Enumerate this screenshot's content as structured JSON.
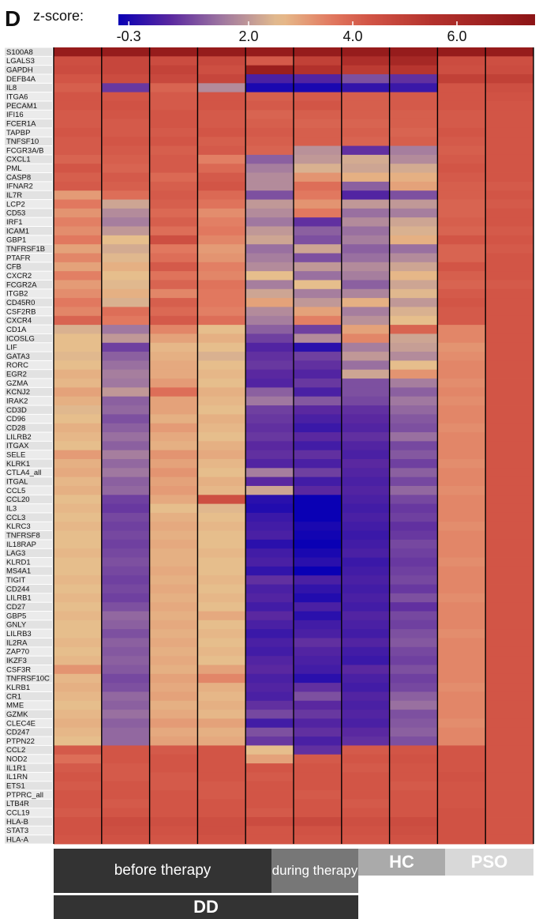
{
  "panel_label": "D",
  "colorbar": {
    "title": "z-score:",
    "tick_labels": [
      "-0.3",
      "2.0",
      "4.0",
      "6.0"
    ],
    "tick_values": [
      -0.3,
      2.0,
      4.0,
      6.0
    ],
    "range": [
      -0.5,
      7.5
    ]
  },
  "groups": {
    "before_therapy": "before therapy",
    "during_therapy": "during therapy",
    "hc": "HC",
    "pso": "PSO",
    "dd": "DD"
  },
  "chart_data": {
    "type": "heatmap",
    "title": "",
    "value_label": "z-score",
    "columns": [
      "before therapy 1",
      "before therapy 2",
      "before therapy 3",
      "before therapy 4",
      "during therapy 1",
      "during therapy 2",
      "HC 1",
      "HC 2",
      "PSO 1",
      "PSO 2"
    ],
    "column_groups": [
      {
        "label": "before therapy",
        "columns": [
          0,
          1,
          2,
          3
        ]
      },
      {
        "label": "during therapy",
        "columns": [
          4,
          5
        ]
      },
      {
        "label": "HC",
        "columns": [
          6,
          7
        ]
      },
      {
        "label": "PSO",
        "columns": [
          8,
          9
        ]
      },
      {
        "label": "DD",
        "columns": [
          0,
          1,
          2,
          3,
          4,
          5
        ]
      }
    ],
    "rows": [
      "S100A8",
      "LGALS3",
      "GAPDH",
      "DEFB4A",
      "IL8",
      "ITGA6",
      "PECAM1",
      "IFI16",
      "FCER1A",
      "TAPBP",
      "TNFSF10",
      "FCGR3A/B",
      "CXCL1",
      "PML",
      "CASP8",
      "IFNAR2",
      "IL7R",
      "LCP2",
      "CD53",
      "IRF1",
      "ICAM1",
      "GBP1",
      "TNFRSF1B",
      "PTAFR",
      "CFB",
      "CXCR2",
      "FCGR2A",
      "ITGB2",
      "CD45R0",
      "CSF2RB",
      "CXCR4",
      "CD1A",
      "ICOSLG",
      "LIF",
      "GATA3",
      "RORC",
      "EGR2",
      "GZMA",
      "KCNJ2",
      "IRAK2",
      "CD3D",
      "CD96",
      "CD28",
      "LILRB2",
      "ITGAX",
      "SELE",
      "KLRK1",
      "CTLA4_all",
      "ITGAL",
      "CCL5",
      "CCL20",
      "IL3",
      "CCL3",
      "KLRC3",
      "TNFRSF8",
      "IL18RAP",
      "LAG3",
      "KLRD1",
      "MS4A1",
      "TIGIT",
      "CD244",
      "LILRB1",
      "CD27",
      "GBP5",
      "GNLY",
      "LILRB3",
      "IL2RA",
      "ZAP70",
      "IKZF3",
      "CSF3R",
      "TNFRSF10C",
      "KLRB1",
      "CR1",
      "MME",
      "GZMK",
      "CLEC4E",
      "CD247",
      "PTPN22",
      "CCL2",
      "NOD2",
      "IL1R1",
      "IL1RN",
      "ETS1",
      "PTPRC_all",
      "LTB4R",
      "CCL19",
      "HLA-B",
      "STAT3",
      "HLA-A"
    ],
    "values": [
      [
        7.0,
        7.0,
        7.0,
        7.0,
        7.0,
        7.0,
        7.0,
        7.0,
        7.0,
        7.0
      ],
      [
        4.5,
        4.8,
        4.6,
        4.7,
        4.2,
        5.0,
        5.8,
        6.2,
        4.6,
        4.5
      ],
      [
        4.6,
        4.8,
        4.9,
        4.5,
        6.8,
        5.6,
        5.2,
        5.4,
        4.5,
        4.6
      ],
      [
        4.3,
        4.6,
        4.7,
        4.8,
        0.3,
        0.4,
        1.0,
        0.6,
        5.0,
        5.0
      ],
      [
        4.1,
        0.7,
        4.0,
        1.8,
        -0.3,
        -0.3,
        0.0,
        0.1,
        4.3,
        4.5
      ],
      [
        4.3,
        4.3,
        4.2,
        4.3,
        4.1,
        4.2,
        4.1,
        4.2,
        4.3,
        4.4
      ],
      [
        4.3,
        4.4,
        4.2,
        4.3,
        4.2,
        4.3,
        4.1,
        4.2,
        4.3,
        4.3
      ],
      [
        4.2,
        4.3,
        4.3,
        4.2,
        4.0,
        4.1,
        4.1,
        4.1,
        4.2,
        4.3
      ],
      [
        4.2,
        4.2,
        4.3,
        4.2,
        4.1,
        4.0,
        4.0,
        4.1,
        4.2,
        4.3
      ],
      [
        4.3,
        4.2,
        4.2,
        4.3,
        4.2,
        4.1,
        4.1,
        4.0,
        4.3,
        4.3
      ],
      [
        4.2,
        4.3,
        4.3,
        4.1,
        4.1,
        4.1,
        4.0,
        4.1,
        4.2,
        4.3
      ],
      [
        4.2,
        4.2,
        4.1,
        4.2,
        4.0,
        1.9,
        0.6,
        1.6,
        4.1,
        4.3
      ],
      [
        4.0,
        4.1,
        4.2,
        3.5,
        1.2,
        2.0,
        2.3,
        1.8,
        4.2,
        4.3
      ],
      [
        4.3,
        4.0,
        4.2,
        3.9,
        1.6,
        2.4,
        2.2,
        2.3,
        4.3,
        4.3
      ],
      [
        4.1,
        4.2,
        3.9,
        4.2,
        1.8,
        3.2,
        2.8,
        2.8,
        4.2,
        4.3
      ],
      [
        4.2,
        4.1,
        4.1,
        4.3,
        1.8,
        3.8,
        1.2,
        3.0,
        4.1,
        4.2
      ],
      [
        3.1,
        3.8,
        4.2,
        3.9,
        1.0,
        3.6,
        0.4,
        1.0,
        4.1,
        4.3
      ],
      [
        3.6,
        2.2,
        4.1,
        3.7,
        2.0,
        3.2,
        2.0,
        2.0,
        4.0,
        4.2
      ],
      [
        3.2,
        1.8,
        3.9,
        3.3,
        1.8,
        3.6,
        1.4,
        1.6,
        4.0,
        4.3
      ],
      [
        3.5,
        1.6,
        4.1,
        3.5,
        1.5,
        0.6,
        1.8,
        2.2,
        4.1,
        4.3
      ],
      [
        3.3,
        2.0,
        3.8,
        3.6,
        2.0,
        1.2,
        1.4,
        2.4,
        4.0,
        4.2
      ],
      [
        3.6,
        2.6,
        4.5,
        3.4,
        2.2,
        1.0,
        1.6,
        2.8,
        4.3,
        4.3
      ],
      [
        3.0,
        2.3,
        3.6,
        3.1,
        1.4,
        2.2,
        1.2,
        1.4,
        4.0,
        4.2
      ],
      [
        3.4,
        2.5,
        3.8,
        3.2,
        1.6,
        1.0,
        1.4,
        1.8,
        4.0,
        4.3
      ],
      [
        3.0,
        2.8,
        4.2,
        3.5,
        1.8,
        2.0,
        1.8,
        2.2,
        4.3,
        4.3
      ],
      [
        3.5,
        2.6,
        3.7,
        3.4,
        2.6,
        1.4,
        1.6,
        2.7,
        4.1,
        4.3
      ],
      [
        3.1,
        2.5,
        4.0,
        3.7,
        1.6,
        2.6,
        1.2,
        2.2,
        4.0,
        4.2
      ],
      [
        3.3,
        2.8,
        3.4,
        3.6,
        2.2,
        1.6,
        1.7,
        2.5,
        4.2,
        4.3
      ],
      [
        3.6,
        2.4,
        4.1,
        3.6,
        3.0,
        2.0,
        2.8,
        2.0,
        4.3,
        4.3
      ],
      [
        3.4,
        3.8,
        3.9,
        3.5,
        1.8,
        3.0,
        1.6,
        2.4,
        4.2,
        4.3
      ],
      [
        4.0,
        3.6,
        4.2,
        3.8,
        1.6,
        3.5,
        1.9,
        2.6,
        4.2,
        4.3
      ],
      [
        2.4,
        1.5,
        3.4,
        2.6,
        1.2,
        0.8,
        3.0,
        4.0,
        3.4,
        4.3
      ],
      [
        2.6,
        2.0,
        3.0,
        2.8,
        0.8,
        1.8,
        3.4,
        2.2,
        3.4,
        4.3
      ],
      [
        2.6,
        0.8,
        2.7,
        2.6,
        0.4,
        -0.1,
        1.6,
        2.1,
        3.2,
        4.3
      ],
      [
        2.5,
        1.2,
        2.8,
        2.4,
        0.6,
        0.8,
        2.0,
        1.8,
        3.3,
        4.3
      ],
      [
        2.6,
        1.4,
        2.9,
        2.6,
        0.7,
        0.6,
        1.4,
        2.6,
        3.4,
        4.3
      ],
      [
        2.8,
        1.6,
        2.9,
        2.7,
        0.5,
        0.4,
        2.2,
        3.2,
        3.4,
        4.3
      ],
      [
        2.7,
        1.5,
        3.1,
        2.6,
        0.4,
        0.7,
        1.0,
        1.6,
        3.3,
        4.3
      ],
      [
        3.0,
        2.0,
        3.8,
        2.8,
        1.2,
        0.3,
        1.0,
        1.2,
        3.4,
        4.3
      ],
      [
        2.8,
        1.2,
        3.0,
        2.7,
        1.5,
        1.1,
        0.9,
        1.5,
        3.3,
        4.3
      ],
      [
        2.5,
        1.3,
        3.0,
        2.6,
        0.8,
        0.5,
        0.6,
        1.3,
        3.4,
        4.3
      ],
      [
        2.6,
        1.0,
        2.8,
        2.8,
        0.7,
        0.3,
        0.5,
        1.1,
        3.4,
        4.3
      ],
      [
        2.8,
        1.2,
        3.1,
        2.7,
        0.6,
        0.1,
        0.4,
        1.0,
        3.3,
        4.3
      ],
      [
        2.7,
        1.4,
        2.9,
        2.6,
        0.7,
        0.5,
        0.6,
        1.4,
        3.4,
        4.3
      ],
      [
        2.6,
        1.2,
        2.8,
        2.8,
        0.5,
        0.2,
        0.4,
        0.9,
        3.4,
        4.3
      ],
      [
        3.1,
        1.6,
        3.2,
        2.9,
        0.6,
        0.6,
        0.3,
        1.1,
        3.4,
        4.3
      ],
      [
        2.8,
        1.3,
        3.0,
        2.7,
        0.4,
        0.3,
        0.5,
        0.8,
        3.3,
        4.3
      ],
      [
        2.9,
        1.5,
        3.2,
        2.6,
        1.6,
        0.8,
        0.4,
        1.2,
        3.4,
        4.3
      ],
      [
        2.7,
        1.2,
        3.0,
        2.8,
        0.5,
        0.2,
        0.3,
        0.9,
        3.4,
        4.3
      ],
      [
        2.8,
        1.3,
        3.1,
        2.7,
        2.2,
        0.5,
        0.4,
        1.3,
        3.3,
        4.3
      ],
      [
        2.6,
        0.8,
        2.9,
        4.5,
        -0.1,
        -0.5,
        0.3,
        0.9,
        3.4,
        4.3
      ],
      [
        2.7,
        0.7,
        2.6,
        2.5,
        -0.2,
        -0.5,
        0.2,
        0.7,
        3.4,
        4.3
      ],
      [
        2.6,
        0.9,
        2.8,
        2.6,
        0.1,
        -0.5,
        0.3,
        0.8,
        3.4,
        4.3
      ],
      [
        2.7,
        0.8,
        2.9,
        2.7,
        0.2,
        -0.3,
        0.2,
        0.6,
        3.3,
        4.3
      ],
      [
        2.6,
        0.9,
        2.8,
        2.6,
        0.3,
        -0.4,
        0.1,
        0.7,
        3.4,
        4.3
      ],
      [
        2.6,
        0.8,
        2.9,
        2.6,
        -0.1,
        -0.5,
        0.2,
        0.9,
        3.4,
        4.3
      ],
      [
        2.7,
        0.9,
        2.8,
        2.7,
        0.2,
        -0.3,
        0.3,
        0.8,
        3.4,
        4.3
      ],
      [
        2.6,
        1.0,
        2.8,
        2.6,
        0.3,
        -0.1,
        0.1,
        0.7,
        3.3,
        4.3
      ],
      [
        2.6,
        0.9,
        2.9,
        2.6,
        0.0,
        -0.5,
        0.2,
        0.8,
        3.4,
        4.3
      ],
      [
        2.7,
        0.8,
        2.8,
        2.7,
        0.6,
        0.3,
        0.3,
        0.9,
        3.4,
        4.3
      ],
      [
        2.6,
        0.9,
        2.9,
        2.6,
        0.3,
        0.0,
        0.2,
        0.7,
        3.4,
        4.3
      ],
      [
        2.7,
        0.8,
        2.8,
        2.7,
        0.4,
        -0.2,
        0.3,
        1.0,
        3.3,
        4.3
      ],
      [
        2.6,
        1.0,
        2.9,
        2.6,
        0.2,
        0.3,
        0.2,
        0.6,
        3.4,
        4.3
      ],
      [
        2.7,
        1.3,
        2.8,
        2.9,
        0.5,
        -0.1,
        0.4,
        0.9,
        3.4,
        4.3
      ],
      [
        2.6,
        1.2,
        2.9,
        2.6,
        0.3,
        0.2,
        0.3,
        0.8,
        3.4,
        4.3
      ],
      [
        2.6,
        1.0,
        2.8,
        2.7,
        0.1,
        0.3,
        0.2,
        1.0,
        3.3,
        4.3
      ],
      [
        2.7,
        1.2,
        2.9,
        2.6,
        0.3,
        0.6,
        0.4,
        1.1,
        3.4,
        4.3
      ],
      [
        2.6,
        1.1,
        2.8,
        2.7,
        0.2,
        0.4,
        0.2,
        0.9,
        3.4,
        4.3
      ],
      [
        2.7,
        1.2,
        2.9,
        2.6,
        0.4,
        0.3,
        0.1,
        0.8,
        3.4,
        4.3
      ],
      [
        3.2,
        1.1,
        2.8,
        3.0,
        0.5,
        0.2,
        0.5,
        1.0,
        3.4,
        4.3
      ],
      [
        2.7,
        0.9,
        3.0,
        3.4,
        0.3,
        -0.1,
        0.3,
        0.8,
        3.4,
        4.3
      ],
      [
        2.8,
        1.0,
        2.9,
        2.8,
        0.4,
        0.6,
        0.2,
        0.9,
        3.3,
        4.3
      ],
      [
        2.7,
        1.3,
        3.0,
        2.7,
        0.3,
        1.0,
        0.4,
        1.2,
        3.4,
        4.3
      ],
      [
        2.6,
        1.2,
        2.8,
        2.8,
        0.6,
        0.5,
        0.3,
        1.4,
        3.4,
        4.3
      ],
      [
        2.7,
        1.4,
        2.9,
        2.7,
        0.9,
        0.7,
        0.4,
        1.0,
        3.4,
        4.3
      ],
      [
        2.8,
        1.2,
        3.1,
        3.0,
        0.2,
        0.4,
        0.3,
        1.1,
        3.3,
        4.3
      ],
      [
        2.7,
        1.3,
        2.9,
        2.8,
        1.0,
        0.6,
        0.5,
        1.2,
        3.4,
        4.3
      ],
      [
        2.6,
        1.3,
        3.0,
        2.9,
        0.7,
        0.3,
        0.6,
        1.0,
        3.4,
        4.3
      ],
      [
        4.2,
        4.3,
        4.2,
        4.3,
        2.6,
        0.6,
        4.2,
        4.3,
        4.3,
        4.3
      ],
      [
        3.8,
        4.3,
        4.3,
        4.3,
        3.0,
        4.2,
        4.3,
        4.4,
        4.3,
        4.3
      ],
      [
        4.2,
        4.2,
        4.3,
        4.3,
        4.3,
        4.3,
        4.2,
        4.3,
        4.3,
        4.3
      ],
      [
        4.3,
        4.2,
        4.2,
        4.3,
        4.2,
        4.3,
        4.3,
        4.3,
        4.4,
        4.3
      ],
      [
        4.2,
        4.3,
        4.2,
        4.2,
        4.3,
        4.3,
        4.3,
        4.2,
        4.3,
        4.3
      ],
      [
        4.3,
        4.3,
        4.3,
        4.2,
        4.3,
        4.2,
        4.3,
        4.3,
        4.3,
        4.3
      ],
      [
        4.3,
        4.2,
        4.3,
        4.3,
        4.3,
        4.3,
        4.2,
        4.3,
        4.3,
        4.3
      ],
      [
        4.2,
        4.3,
        4.3,
        4.3,
        4.2,
        4.3,
        4.3,
        4.3,
        4.4,
        4.3
      ],
      [
        4.4,
        4.6,
        4.5,
        4.5,
        4.6,
        4.7,
        4.5,
        4.6,
        4.4,
        4.3
      ],
      [
        4.4,
        4.5,
        4.4,
        4.5,
        4.3,
        4.4,
        4.4,
        4.5,
        4.4,
        4.3
      ],
      [
        4.3,
        4.4,
        4.3,
        4.4,
        4.3,
        4.3,
        4.3,
        4.4,
        4.4,
        4.3
      ]
    ]
  }
}
